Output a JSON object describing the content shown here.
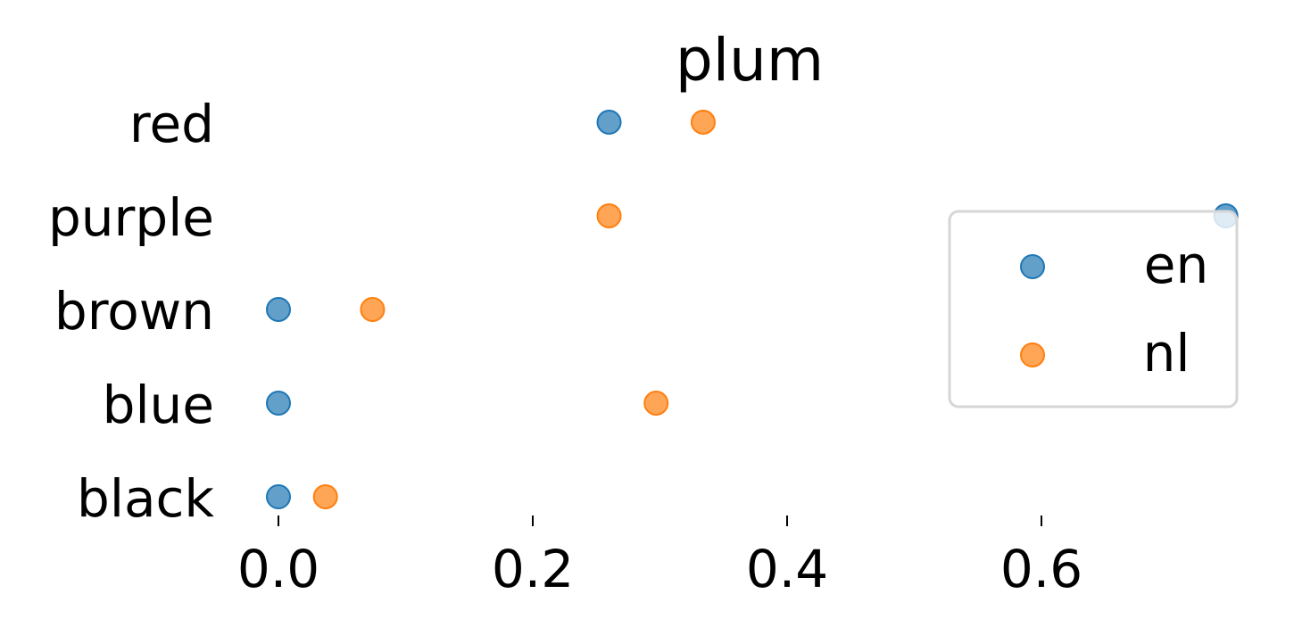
{
  "chart_data": {
    "type": "scatter",
    "title": "plum",
    "xlabel": "",
    "ylabel": "",
    "categories": [
      "red",
      "purple",
      "brown",
      "blue",
      "black"
    ],
    "x_ticks": [
      "0.0",
      "0.2",
      "0.4",
      "0.6"
    ],
    "x_tick_values": [
      0.0,
      0.2,
      0.4,
      0.6
    ],
    "xlim": [
      -0.03,
      0.76
    ],
    "grid": false,
    "legend_position": "right",
    "series": [
      {
        "name": "en",
        "color": "#1f77b4",
        "values": [
          0.26,
          0.745,
          0.0,
          0.0,
          0.0
        ]
      },
      {
        "name": "nl",
        "color": "#ff7f0e",
        "values": [
          0.334,
          0.26,
          0.074,
          0.297,
          0.037
        ]
      }
    ]
  }
}
